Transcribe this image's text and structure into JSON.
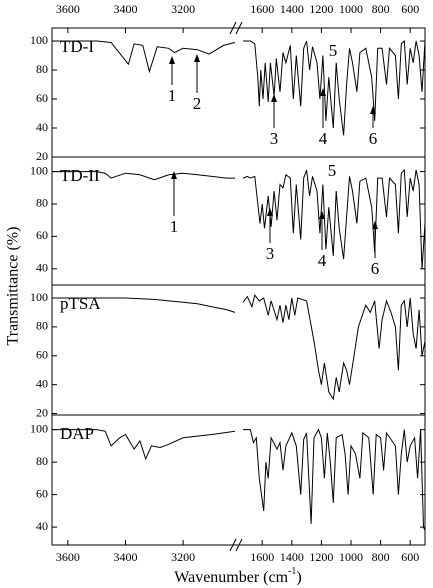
{
  "ylabel": "Transmittance (%)",
  "chart_data": [
    {
      "type": "line",
      "label": "TD-I",
      "xlim": [
        [
          3655,
          3020
        ],
        [
          1730,
          500
        ]
      ],
      "xticks": [
        3600,
        3400,
        3200,
        1600,
        1400,
        1200,
        1000,
        800,
        600
      ],
      "ylim": [
        20,
        109
      ],
      "yticks": [
        20,
        40,
        60,
        80,
        100
      ],
      "color": "#000",
      "annotations": [
        "1",
        "2",
        "3",
        "4",
        "5",
        "6"
      ],
      "x": [
        3655,
        3500,
        3450,
        3390,
        3370,
        3340,
        3317,
        3290,
        3250,
        3230,
        3200,
        3150,
        3110,
        3060,
        3020,
        null,
        1730,
        1680,
        1650,
        1630,
        1620,
        1610,
        1595,
        1580,
        1560,
        1545,
        1520,
        1505,
        1480,
        1460,
        1440,
        1410,
        1390,
        1370,
        1340,
        1320,
        1300,
        1280,
        1260,
        1230,
        1210,
        1190,
        1170,
        1150,
        1120,
        1100,
        1080,
        1050,
        1030,
        1010,
        990,
        960,
        940,
        900,
        860,
        840,
        820,
        790,
        760,
        740,
        700,
        680,
        660,
        640,
        620,
        600,
        580,
        560,
        540,
        520,
        500
      ],
      "values": [
        100,
        100,
        99,
        84,
        98,
        97,
        79,
        96,
        95,
        92,
        95,
        94,
        91,
        97,
        99,
        null,
        100,
        100,
        98,
        75,
        55,
        80,
        60,
        85,
        58,
        85,
        62,
        88,
        65,
        92,
        85,
        97,
        60,
        90,
        55,
        95,
        100,
        80,
        96,
        85,
        60,
        90,
        45,
        75,
        40,
        85,
        60,
        35,
        70,
        95,
        85,
        65,
        92,
        95,
        75,
        45,
        95,
        95,
        70,
        95,
        90,
        60,
        98,
        100,
        70,
        95,
        85,
        100,
        90,
        65,
        100
      ]
    },
    {
      "type": "line",
      "label": "TD-II",
      "xlim": [
        [
          3655,
          3020
        ],
        [
          1730,
          500
        ]
      ],
      "ylim": [
        30,
        109
      ],
      "yticks": [
        40,
        60,
        80,
        100
      ],
      "color": "#000",
      "annotations": [
        "1",
        "3",
        "4",
        "5",
        "6"
      ],
      "x": [
        3655,
        3500,
        3470,
        3450,
        3400,
        3350,
        3300,
        3250,
        3200,
        3150,
        3100,
        3050,
        3020,
        null,
        1730,
        1700,
        1680,
        1650,
        1630,
        1615,
        1600,
        1585,
        1560,
        1540,
        1520,
        1500,
        1480,
        1460,
        1440,
        1410,
        1390,
        1370,
        1340,
        1320,
        1300,
        1280,
        1260,
        1230,
        1210,
        1190,
        1170,
        1150,
        1120,
        1100,
        1080,
        1050,
        1030,
        1010,
        990,
        960,
        940,
        900,
        860,
        840,
        820,
        790,
        760,
        740,
        700,
        680,
        660,
        640,
        620,
        600,
        580,
        560,
        540,
        520,
        500
      ],
      "values": [
        100,
        100,
        99,
        96,
        99,
        98,
        95,
        98,
        99,
        98,
        97,
        96,
        96,
        null,
        96,
        97,
        96,
        97,
        80,
        68,
        80,
        65,
        85,
        66,
        88,
        70,
        92,
        90,
        98,
        96,
        62,
        92,
        58,
        96,
        101,
        85,
        97,
        88,
        62,
        92,
        52,
        78,
        48,
        88,
        65,
        46,
        72,
        97,
        88,
        68,
        94,
        96,
        78,
        50,
        96,
        96,
        72,
        96,
        92,
        62,
        99,
        101,
        72,
        96,
        88,
        101,
        92,
        40,
        68
      ]
    },
    {
      "type": "line",
      "label": "pTSA",
      "xlim": [
        [
          3655,
          3020
        ],
        [
          1730,
          500
        ]
      ],
      "ylim": [
        19,
        109
      ],
      "yticks": [
        20,
        40,
        60,
        80,
        100
      ],
      "color": "#000",
      "x": [
        3655,
        3500,
        3400,
        3300,
        3250,
        3200,
        3150,
        3100,
        3050,
        3020,
        null,
        1730,
        1700,
        1670,
        1650,
        1620,
        1590,
        1560,
        1540,
        1500,
        1480,
        1460,
        1440,
        1420,
        1400,
        1380,
        1360,
        1300,
        1250,
        1220,
        1200,
        1180,
        1150,
        1120,
        1100,
        1080,
        1050,
        1030,
        1010,
        980,
        950,
        900,
        870,
        840,
        810,
        790,
        760,
        730,
        700,
        680,
        660,
        640,
        620,
        600,
        580,
        560,
        540,
        520,
        500
      ],
      "values": [
        100,
        100,
        100,
        99,
        98,
        97,
        96,
        94,
        92,
        90,
        null,
        97,
        101,
        94,
        102,
        98,
        100,
        88,
        98,
        85,
        95,
        83,
        95,
        85,
        100,
        88,
        100,
        98,
        70,
        50,
        40,
        55,
        35,
        30,
        45,
        35,
        55,
        50,
        40,
        60,
        80,
        95,
        90,
        98,
        65,
        85,
        98,
        90,
        80,
        50,
        95,
        98,
        80,
        100,
        75,
        65,
        92,
        60,
        70
      ]
    },
    {
      "type": "line",
      "label": "DAP",
      "xlim": [
        [
          3655,
          3020
        ],
        [
          1730,
          500
        ]
      ],
      "xticks": [
        3600,
        3400,
        3200,
        1600,
        1400,
        1200,
        1000,
        800,
        600
      ],
      "ylim": [
        29,
        109
      ],
      "yticks": [
        40,
        60,
        80,
        100
      ],
      "color": "#000",
      "xlabel": [
        "Wavenumber (cm",
        "-1",
        ")"
      ],
      "x": [
        3655,
        3500,
        3470,
        3450,
        3420,
        3400,
        3370,
        3350,
        3330,
        3310,
        3280,
        3250,
        3200,
        3100,
        3020,
        null,
        1730,
        1680,
        1660,
        1640,
        1620,
        1605,
        1590,
        1575,
        1560,
        1540,
        1500,
        1480,
        1460,
        1440,
        1400,
        1370,
        1340,
        1320,
        1300,
        1270,
        1250,
        1220,
        1200,
        1180,
        1160,
        1140,
        1120,
        1100,
        1060,
        1040,
        1020,
        1000,
        970,
        940,
        920,
        880,
        850,
        830,
        800,
        780,
        760,
        700,
        680,
        660,
        640,
        620,
        600,
        570,
        550,
        530,
        510,
        500
      ],
      "values": [
        100,
        100,
        99,
        90,
        95,
        97,
        88,
        93,
        82,
        90,
        89,
        91,
        95,
        97,
        99,
        null,
        100,
        100,
        92,
        95,
        70,
        60,
        50,
        80,
        70,
        95,
        88,
        92,
        75,
        90,
        98,
        90,
        60,
        94,
        98,
        42,
        95,
        100,
        95,
        70,
        98,
        80,
        55,
        95,
        97,
        85,
        60,
        90,
        85,
        70,
        98,
        95,
        60,
        97,
        95,
        75,
        98,
        90,
        60,
        85,
        100,
        80,
        90,
        95,
        70,
        100,
        40,
        38
      ]
    }
  ]
}
